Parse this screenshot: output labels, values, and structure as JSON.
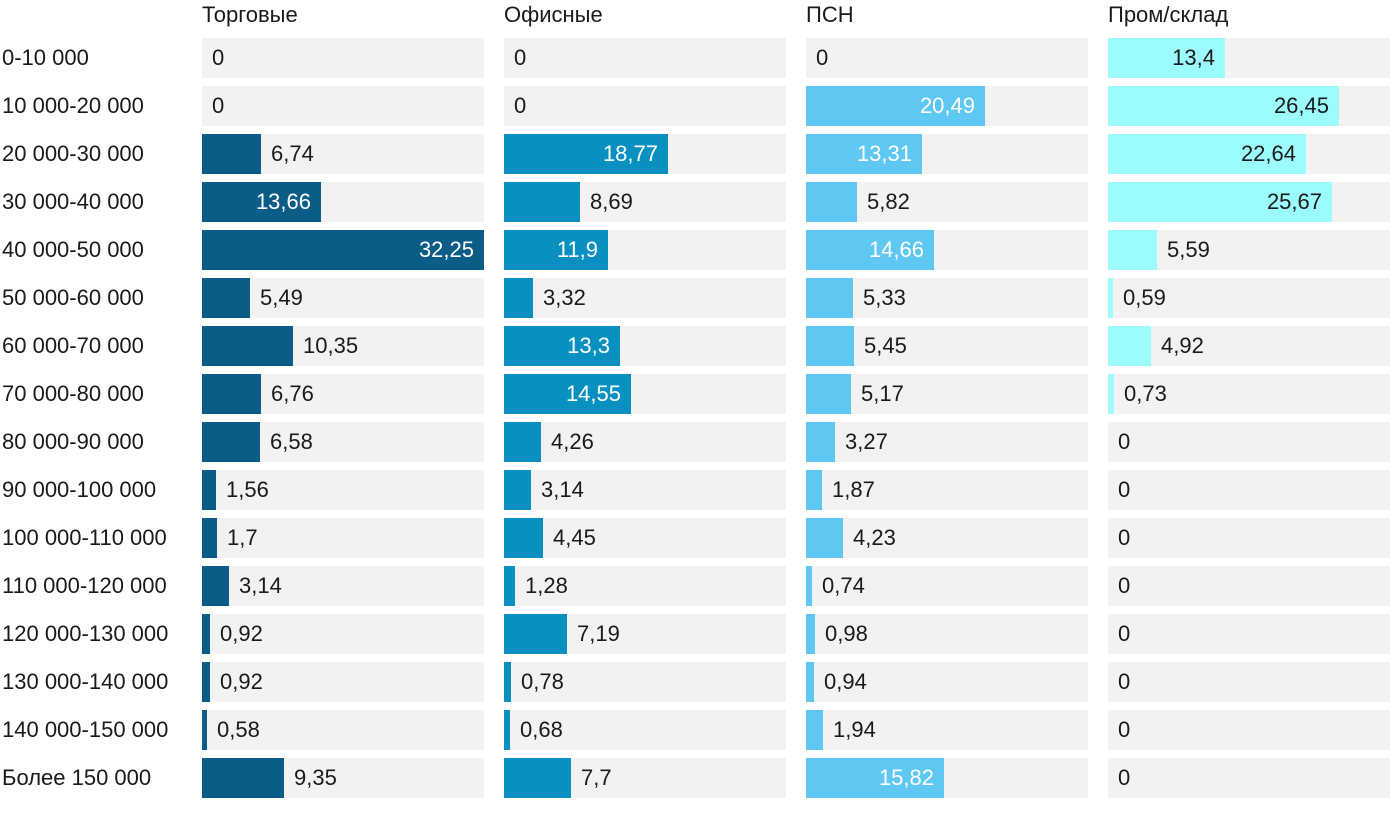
{
  "chart_data": {
    "type": "bar",
    "orientation": "horizontal",
    "layout": "small-multiples",
    "max_value": 32.25,
    "categories": [
      "0-10 000",
      "10 000-20 000",
      "20 000-30 000",
      "30 000-40 000",
      "40 000-50 000",
      "50 000-60 000",
      "60 000-70 000",
      "70 000-80 000",
      "80 000-90 000",
      "90 000-100 000",
      "100 000-110 000",
      "110 000-120 000",
      "120 000-130 000",
      "130 000-140 000",
      "140 000-150 000",
      "Более 150 000"
    ],
    "series": [
      {
        "name": "Торговые",
        "color": "#0b5c86",
        "values": [
          0,
          0,
          6.74,
          13.66,
          32.25,
          5.49,
          10.35,
          6.76,
          6.58,
          1.56,
          1.7,
          3.14,
          0.92,
          0.92,
          0.58,
          9.35
        ],
        "labels": [
          "0",
          "0",
          "6,74",
          "13,66",
          "32,25",
          "5,49",
          "10,35",
          "6,76",
          "6,58",
          "1,56",
          "1,7",
          "3,14",
          "0,92",
          "0,92",
          "0,58",
          "9,35"
        ]
      },
      {
        "name": "Офисные",
        "color": "#0891c0",
        "values": [
          0,
          0,
          18.77,
          8.69,
          11.9,
          3.32,
          13.3,
          14.55,
          4.26,
          3.14,
          4.45,
          1.28,
          7.19,
          0.78,
          0.68,
          7.7
        ],
        "labels": [
          "0",
          "0",
          "18,77",
          "8,69",
          "11,9",
          "3,32",
          "13,3",
          "14,55",
          "4,26",
          "3,14",
          "4,45",
          "1,28",
          "7,19",
          "0,78",
          "0,68",
          "7,7"
        ]
      },
      {
        "name": "ПСН",
        "color": "#5ec7f2",
        "values": [
          0,
          20.49,
          13.31,
          5.82,
          14.66,
          5.33,
          5.45,
          5.17,
          3.27,
          1.87,
          4.23,
          0.74,
          0.98,
          0.94,
          1.94,
          15.82
        ],
        "labels": [
          "0",
          "20,49",
          "13,31",
          "5,82",
          "14,66",
          "5,33",
          "5,45",
          "5,17",
          "3,27",
          "1,87",
          "4,23",
          "0,74",
          "0,98",
          "0,94",
          "1,94",
          "15,82"
        ]
      },
      {
        "name": "Пром/склад",
        "color": "#9cfcfd",
        "values": [
          13.4,
          26.45,
          22.64,
          25.67,
          5.59,
          0.59,
          4.92,
          0.73,
          0,
          0,
          0,
          0,
          0,
          0,
          0,
          0
        ],
        "labels": [
          "13,4",
          "26,45",
          "22,64",
          "25,67",
          "5,59",
          "0,59",
          "4,92",
          "0,73",
          "0",
          "0",
          "0",
          "0",
          "0",
          "0",
          "0",
          "0"
        ]
      }
    ]
  }
}
